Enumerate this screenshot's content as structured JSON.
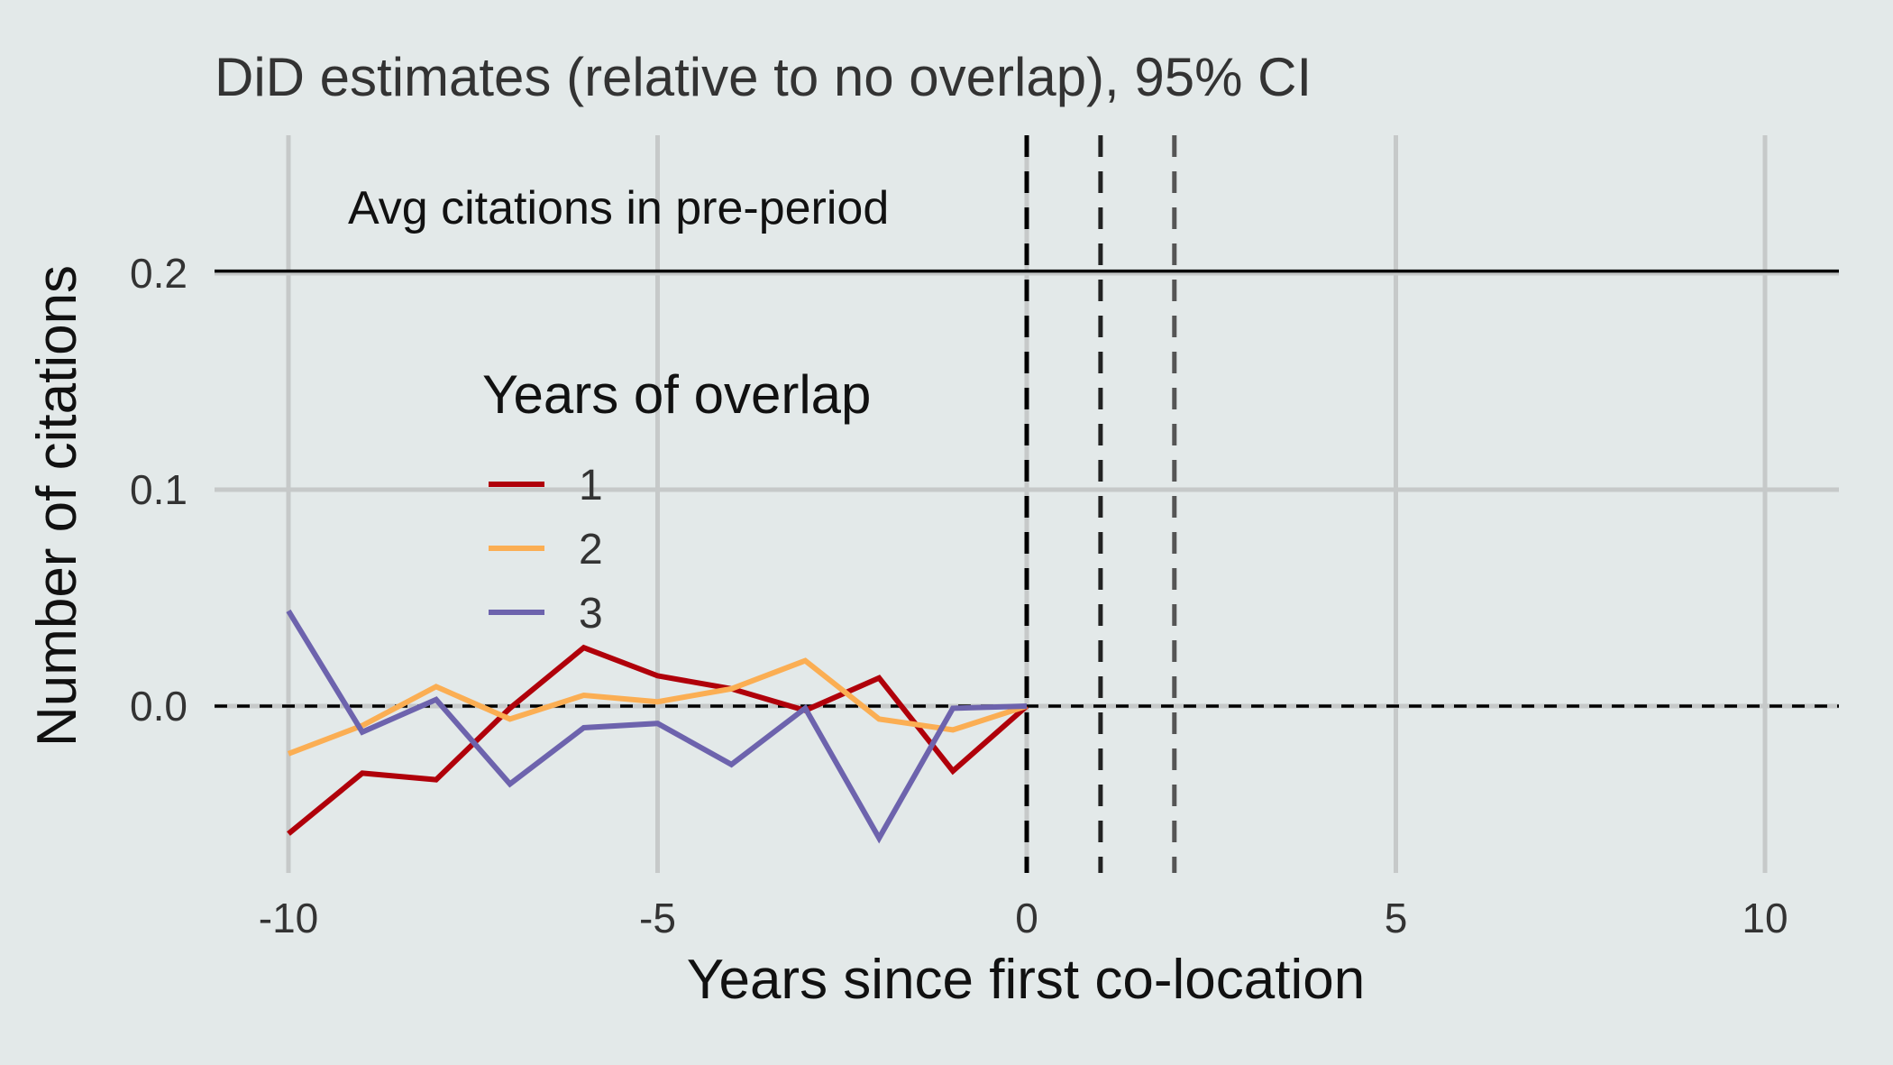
{
  "chart_data": {
    "type": "line",
    "title": "DiD estimates (relative to no overlap), 95% CI",
    "xlabel": "Years since first co-location",
    "ylabel": "Number of citations",
    "xlim": [
      -11,
      11
    ],
    "ylim": [
      -0.077,
      0.26
    ],
    "x_ticks": [
      -10,
      -5,
      0,
      5,
      10
    ],
    "y_ticks": [
      0.0,
      0.1,
      0.2
    ],
    "x_tick_labels": [
      "-10",
      "-5",
      "0",
      "5",
      "10"
    ],
    "y_tick_labels": [
      "0.0",
      "0.1",
      "0.2"
    ],
    "grid": true,
    "legend": {
      "title": "Years of overlap",
      "position": "center-left"
    },
    "reference_lines": {
      "hline_solid": {
        "y": 0.201,
        "label": "Avg citations in pre-period",
        "color": "#000000"
      },
      "hline_dashed": {
        "y": 0.0,
        "color": "#000000"
      },
      "vlines_dashed": [
        {
          "x": 0,
          "color": "#000000"
        },
        {
          "x": 1,
          "color": "#222222"
        },
        {
          "x": 2,
          "color": "#555555"
        }
      ]
    },
    "series": [
      {
        "name": "1",
        "color": "#b0000a",
        "x": [
          -10,
          -9,
          -8,
          -7,
          -6,
          -5,
          -4,
          -3,
          -2,
          -1,
          0
        ],
        "y": [
          -0.059,
          -0.031,
          -0.034,
          -0.001,
          0.027,
          0.014,
          0.008,
          -0.002,
          0.013,
          -0.03,
          0.0
        ]
      },
      {
        "name": "2",
        "color": "#fbae53",
        "x": [
          -10,
          -9,
          -8,
          -7,
          -6,
          -5,
          -4,
          -3,
          -2,
          -1,
          0
        ],
        "y": [
          -0.022,
          -0.009,
          0.009,
          -0.006,
          0.005,
          0.002,
          0.008,
          0.021,
          -0.006,
          -0.011,
          0.0
        ]
      },
      {
        "name": "3",
        "color": "#6d63ad",
        "x": [
          -10,
          -9,
          -8,
          -7,
          -6,
          -5,
          -4,
          -3,
          -2,
          -1,
          0
        ],
        "y": [
          0.044,
          -0.012,
          0.003,
          -0.036,
          -0.01,
          -0.008,
          -0.027,
          -0.001,
          -0.061,
          -0.001,
          0.0
        ]
      }
    ]
  }
}
